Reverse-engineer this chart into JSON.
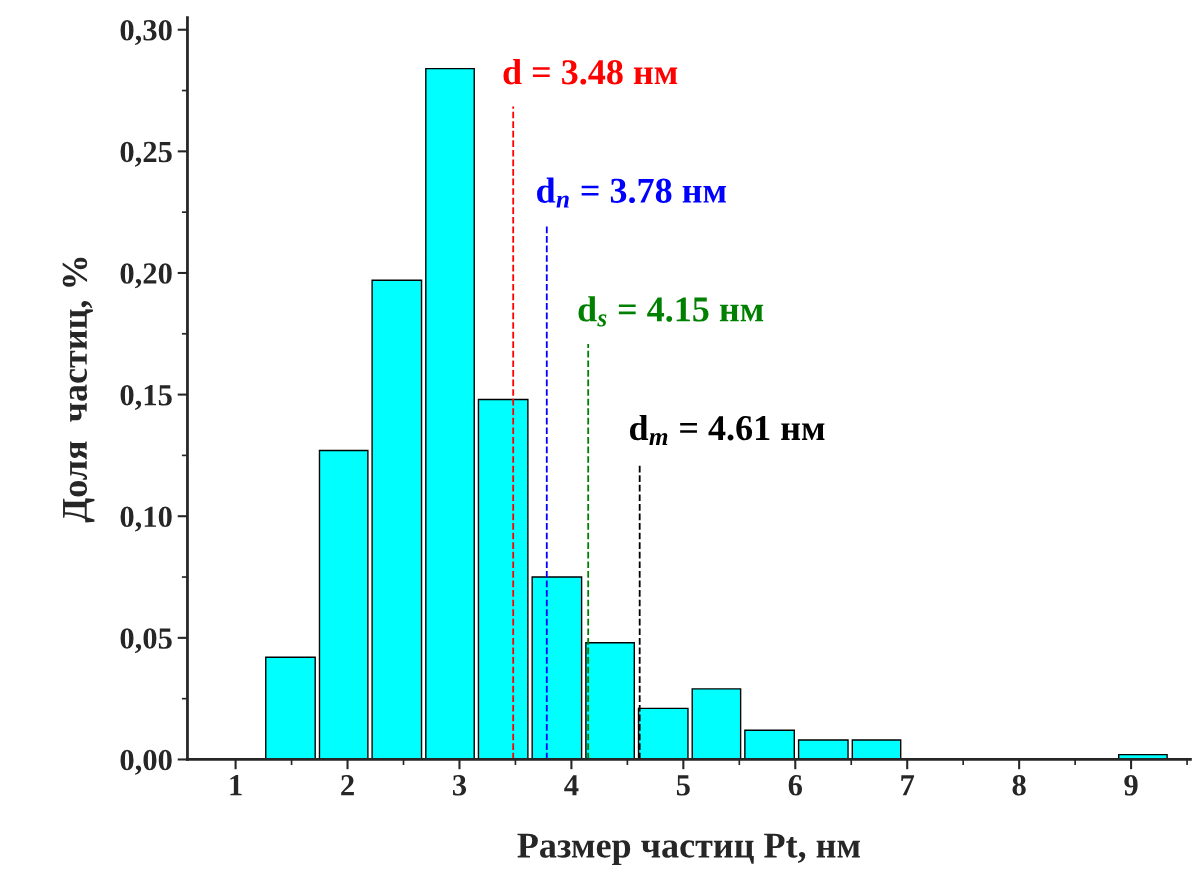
{
  "chart_data": {
    "type": "histogram",
    "xlabel": "Размер частиц Pt, нм",
    "ylabel": "Доля  частиц, %",
    "bins": [
      1.26,
      1.74,
      2.21,
      2.69,
      3.16,
      3.64,
      4.12,
      4.59,
      5.07,
      5.54,
      6.02,
      6.5,
      6.97,
      8.88,
      9.35
    ],
    "values": [
      0.042,
      0.127,
      0.197,
      0.284,
      0.148,
      0.075,
      0.048,
      0.021,
      0.029,
      0.012,
      0.008,
      0.008,
      0,
      0.002
    ],
    "color": "#00ffff",
    "xlim": [
      0.57,
      9.53
    ],
    "xticks": [
      1,
      2,
      3,
      4,
      5,
      6,
      7,
      8,
      9
    ],
    "ylim": [
      0,
      0.305
    ],
    "yticks": [
      {
        "value": 0,
        "label": "0,00"
      },
      {
        "value": 0.05,
        "label": "0,05"
      },
      {
        "value": 0.1,
        "label": "0,10"
      },
      {
        "value": 0.15,
        "label": "0,15"
      },
      {
        "value": 0.2,
        "label": "0,20"
      },
      {
        "value": 0.25,
        "label": "0,25"
      },
      {
        "value": 0.3,
        "label": "0,30"
      }
    ],
    "ref_lines": [
      {
        "axis": "x",
        "value": 3.48,
        "label": "d = 3.48 нм",
        "color": "#ff0000",
        "line_style": "dashed"
      },
      {
        "axis": "x",
        "value": 3.78,
        "label": "d$_{n}$ = 3.78 нм",
        "color": "#0000ff",
        "line_style": "dashed"
      },
      {
        "axis": "x",
        "value": 4.15,
        "label": "d$_{s}$ = 4.15 нм",
        "color": "#008000",
        "line_style": "dashed"
      },
      {
        "axis": "x",
        "value": 4.61,
        "label": "d$_{m}$ = 4.61 нм",
        "color": "#000000",
        "line_style": "dashed"
      }
    ],
    "grid": false,
    "legend": false
  }
}
